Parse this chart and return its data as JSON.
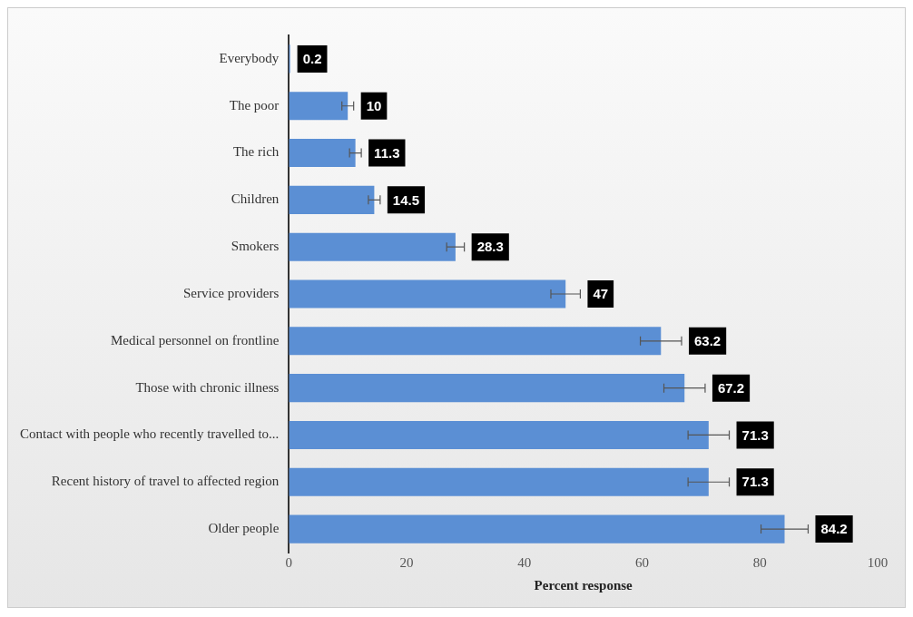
{
  "chart_data": {
    "type": "bar",
    "orientation": "horizontal",
    "xlabel": "Percent response",
    "categories": [
      "Everybody",
      "The poor",
      "The rich",
      "Children",
      "Smokers",
      "Service providers",
      "Medical personnel on frontline",
      "Those with chronic illness",
      "Contact with people who recently travelled to...",
      "Recent history of travel to affected region",
      "Older people"
    ],
    "values": [
      0.2,
      10,
      11.3,
      14.5,
      28.3,
      47,
      63.2,
      67.2,
      71.3,
      71.3,
      84.2
    ],
    "errors": [
      null,
      1,
      1,
      1,
      1.5,
      2.5,
      3.5,
      3.5,
      3.5,
      3.5,
      4
    ],
    "color": "#5b8fd4",
    "xlim": [
      0,
      100
    ],
    "xticks": [
      0,
      20,
      40,
      60,
      80,
      100
    ],
    "grid": false,
    "legend": false,
    "data_labels": true
  }
}
